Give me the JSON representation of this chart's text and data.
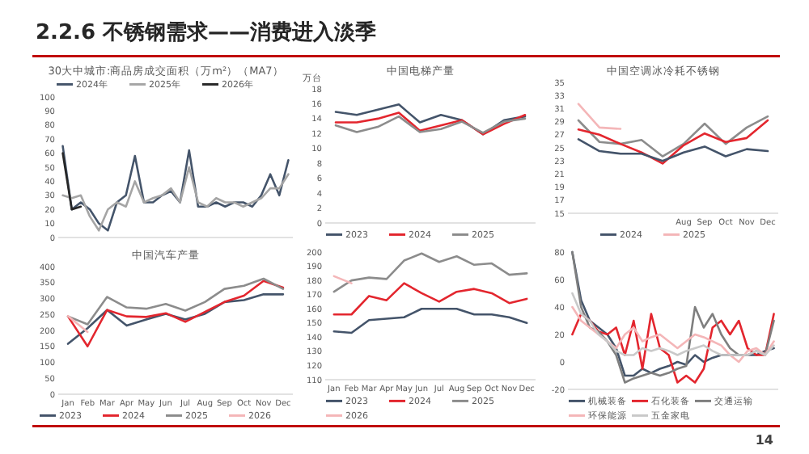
{
  "chart_data": [
    {
      "type": "line",
      "title": "30大中城市:商品房成交面积（万m²）（MA7）",
      "annotations": [
        "2.2.6 不锈钢需求——消费进入淡季"
      ],
      "legend": "top",
      "categories": [
        null,
        null,
        null,
        null,
        null,
        null,
        null,
        null,
        null,
        null,
        null,
        null,
        null,
        null,
        null,
        null,
        null,
        null,
        null,
        null,
        null,
        null,
        null,
        null,
        null,
        null
      ],
      "ylim": [
        0,
        100
      ],
      "yticks": [
        0,
        10,
        20,
        30,
        40,
        50,
        60,
        70,
        80,
        90,
        100
      ],
      "series": [
        {
          "name": "2024年",
          "color": "#44546a",
          "values": [
            65,
            20,
            25,
            20,
            10,
            5,
            25,
            30,
            58,
            25,
            25,
            30,
            33,
            25,
            62,
            22,
            22,
            25,
            22,
            25,
            25,
            22,
            30,
            45,
            30,
            55
          ]
        },
        {
          "name": "2025年",
          "color": "#a5a5a5",
          "values": [
            30,
            28,
            30,
            15,
            5,
            20,
            25,
            22,
            40,
            25,
            28,
            30,
            35,
            25,
            50,
            25,
            22,
            28,
            25,
            25,
            22,
            25,
            28,
            35,
            35,
            45
          ]
        },
        {
          "name": "2026年",
          "color": "#262626",
          "values": [
            60,
            20,
            22,
            null,
            null,
            null,
            null,
            null,
            null,
            null,
            null,
            null,
            null,
            null,
            null,
            null,
            null,
            null,
            null,
            null,
            null,
            null,
            null,
            null,
            null,
            null
          ]
        }
      ]
    },
    {
      "type": "line",
      "title": "中国电梯产量",
      "ylabel": "万台",
      "legend": "bottom",
      "categories": [
        null,
        null,
        null,
        null,
        null,
        null,
        null,
        null,
        null,
        null
      ],
      "ylim": [
        0,
        18
      ],
      "yticks": [
        0,
        2,
        4,
        6,
        8,
        10,
        12,
        14,
        16,
        18
      ],
      "series": [
        {
          "name": "2023",
          "color": "#44546a",
          "values": [
            14.9,
            14.5,
            15.2,
            15.9,
            13.5,
            14.5,
            13.8,
            11.9,
            13.8,
            14.3
          ]
        },
        {
          "name": "2024",
          "color": "#e3262e",
          "values": [
            13.5,
            13.5,
            14.0,
            14.8,
            12.4,
            13.1,
            13.8,
            11.9,
            13.3,
            14.5
          ]
        },
        {
          "name": "2025",
          "color": "#8c8c8c",
          "values": [
            13.1,
            12.2,
            12.9,
            14.3,
            12.2,
            12.6,
            13.6,
            12.1,
            13.6,
            14.0
          ]
        }
      ]
    },
    {
      "type": "line",
      "title": "中国空调冰冷耗不锈钢",
      "legend": "bottom",
      "categories": [
        null,
        null,
        null,
        null,
        null,
        "Aug",
        "Sep",
        "Oct",
        "Nov",
        "Dec"
      ],
      "ylim": [
        15,
        35
      ],
      "yticks": [
        15,
        17,
        19,
        21,
        23,
        25,
        27,
        29,
        31,
        33,
        35
      ],
      "series": [
        {
          "color": "#8c8c8c",
          "values": [
            29.2,
            25.9,
            25.6,
            26.2,
            23.7,
            25.6,
            28.7,
            25.6,
            28.1,
            29.8
          ]
        },
        {
          "color": "#e3262e",
          "values": [
            27.8,
            27.0,
            25.6,
            24.3,
            22.6,
            25.4,
            27.2,
            25.9,
            26.5,
            29.2
          ]
        },
        {
          "name": "2024",
          "color": "#44546a",
          "values": [
            26.3,
            24.5,
            24.1,
            24.1,
            23.0,
            24.3,
            25.2,
            23.7,
            24.8,
            24.5
          ]
        },
        {
          "name": "2025",
          "color": "#f4b6b8",
          "values": [
            31.7,
            28.1,
            27.9,
            null,
            null,
            null,
            null,
            null,
            null,
            null
          ]
        }
      ]
    },
    {
      "type": "line",
      "title": "中国汽车产量",
      "legend": "bottom",
      "categories": [
        "Jan",
        "Feb",
        "Mar",
        "Apr",
        "May",
        "Jun",
        "Jul",
        "Aug",
        "Sep",
        "Oct",
        "Nov",
        "Dec"
      ],
      "ylim": [
        0,
        400
      ],
      "yticks": [
        0,
        50,
        100,
        150,
        200,
        250,
        300,
        350,
        400
      ],
      "series": [
        {
          "name": "2023",
          "color": "#44546a",
          "values": [
            158,
            207,
            264,
            215,
            234,
            252,
            234,
            252,
            289,
            295,
            313,
            313
          ]
        },
        {
          "name": "2024",
          "color": "#e3262e",
          "values": [
            244,
            150,
            264,
            244,
            242,
            254,
            227,
            258,
            289,
            309,
            355,
            334
          ]
        },
        {
          "name": "2025",
          "color": "#8c8c8c",
          "values": [
            244,
            219,
            305,
            272,
            268,
            283,
            262,
            289,
            330,
            340,
            362,
            330
          ]
        },
        {
          "name": "2026",
          "color": "#f4b6b8",
          "values": [
            245,
            195,
            null,
            null,
            null,
            null,
            null,
            null,
            null,
            null,
            null,
            null
          ]
        }
      ]
    },
    {
      "type": "line",
      "legend": "bottom",
      "categories": [
        "Jan",
        "Feb",
        "Mar",
        "Apr",
        "May",
        "Jun",
        "Jul",
        "Aug",
        "Sep",
        "Oct",
        "Nov",
        "Dec"
      ],
      "ylim": [
        110,
        200
      ],
      "yticks": [
        110,
        120,
        130,
        140,
        150,
        160,
        170,
        180,
        190,
        200
      ],
      "series": [
        {
          "name": "2023",
          "color": "#44546a",
          "values": [
            144,
            143,
            152,
            153,
            154,
            160,
            160,
            160,
            156,
            156,
            154,
            150
          ]
        },
        {
          "name": "2024",
          "color": "#e3262e",
          "values": [
            156,
            156,
            169,
            166,
            178,
            171,
            165,
            172,
            174,
            171,
            164,
            167
          ]
        },
        {
          "name": "2025",
          "color": "#8c8c8c",
          "values": [
            172,
            180,
            182,
            181,
            194,
            199,
            193,
            197,
            191,
            192,
            184,
            185
          ]
        },
        {
          "name": "2026",
          "color": "#f4b6b8",
          "values": [
            183,
            178,
            null,
            null,
            null,
            null,
            null,
            null,
            null,
            null,
            null,
            null
          ]
        }
      ]
    },
    {
      "type": "line",
      "legend": "bottom",
      "annotations": [
        "14"
      ],
      "categories": [
        null,
        null,
        null,
        null,
        null,
        null,
        null,
        null,
        null,
        null,
        null,
        null,
        null,
        null,
        null,
        null,
        null,
        null,
        null,
        null,
        null,
        null,
        null,
        null
      ],
      "ylim": [
        -20,
        80
      ],
      "yticks": [
        -20,
        0,
        20,
        40,
        60,
        80
      ],
      "series": [
        {
          "name": "机械装备",
          "color": "#44546a",
          "values": [
            80,
            45,
            30,
            25,
            20,
            10,
            -10,
            -10,
            -5,
            -8,
            -5,
            -3,
            0,
            -2,
            5,
            0,
            3,
            5,
            5,
            5,
            5,
            5,
            8,
            10
          ]
        },
        {
          "name": "石化装备",
          "color": "#e3262e",
          "values": [
            20,
            35,
            30,
            22,
            20,
            25,
            5,
            30,
            -5,
            35,
            10,
            5,
            -15,
            -10,
            -15,
            -5,
            25,
            30,
            20,
            30,
            10,
            5,
            5,
            35
          ]
        },
        {
          "name": "交通运输",
          "color": "#7f7f7f",
          "values": [
            80,
            40,
            25,
            22,
            15,
            5,
            -15,
            -12,
            -10,
            -8,
            -10,
            -8,
            -5,
            -3,
            40,
            25,
            35,
            20,
            10,
            5,
            5,
            8,
            5,
            30
          ]
        },
        {
          "name": "环保能源",
          "color": "#f4b6b8",
          "values": [
            40,
            30,
            25,
            20,
            15,
            10,
            20,
            25,
            15,
            18,
            20,
            15,
            10,
            15,
            20,
            18,
            15,
            12,
            5,
            0,
            8,
            10,
            5,
            15
          ]
        },
        {
          "name": "五金家电",
          "color": "#c9c9c9",
          "values": [
            50,
            35,
            30,
            20,
            15,
            8,
            5,
            5,
            10,
            8,
            10,
            8,
            5,
            8,
            10,
            12,
            8,
            5,
            5,
            5,
            5,
            8,
            5,
            12
          ]
        }
      ]
    }
  ]
}
